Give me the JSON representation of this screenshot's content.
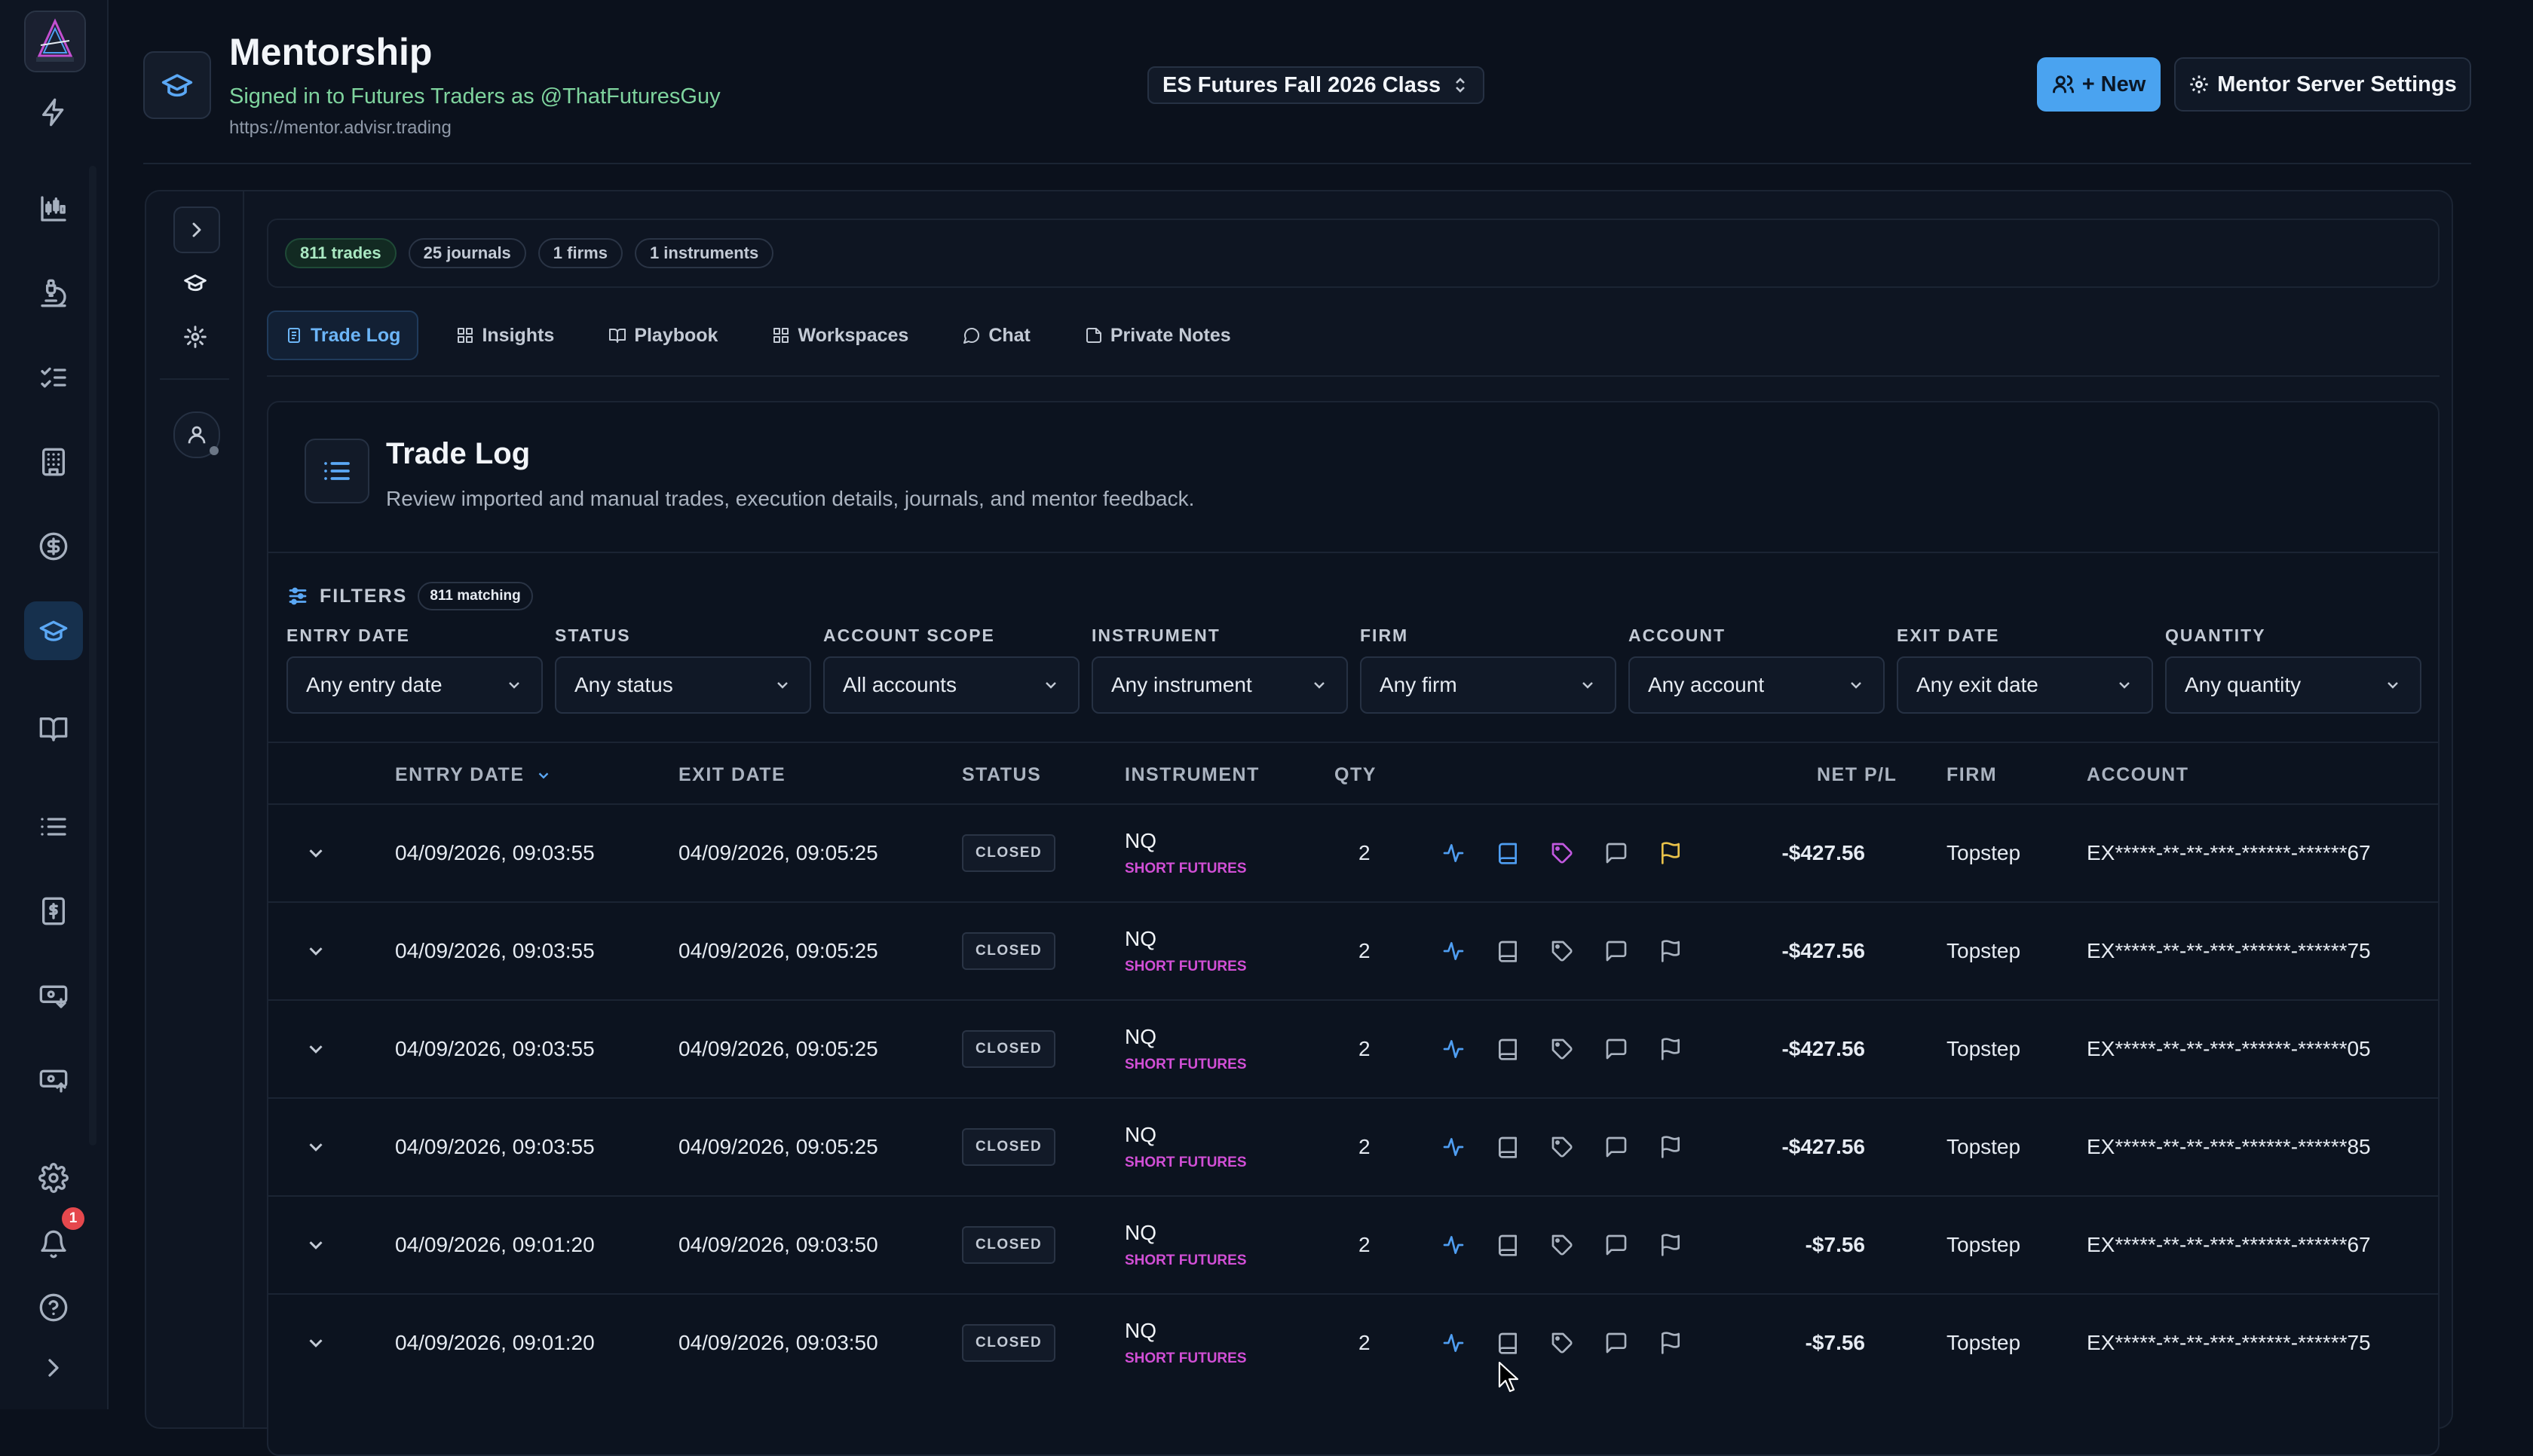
{
  "header": {
    "title": "Mentorship",
    "subtitle": "Signed in to Futures Traders as @ThatFuturesGuy",
    "url": "https://mentor.advisr.trading",
    "class_select": "ES Futures Fall 2026 Class",
    "new_button": "+ New",
    "settings_button": "Mentor Server Settings"
  },
  "rail": {
    "notification_count": "1",
    "active_item": "mentorship",
    "accent": "#5ba8f5"
  },
  "stats": [
    "811 trades",
    "25 journals",
    "1 firms",
    "1 instruments"
  ],
  "tabs": [
    "Trade Log",
    "Insights",
    "Playbook",
    "Workspaces",
    "Chat",
    "Private Notes"
  ],
  "active_tab": "Trade Log",
  "trade_log": {
    "title": "Trade Log",
    "description": "Review imported and manual trades, execution details, journals, and mentor feedback."
  },
  "filters": {
    "label": "FILTERS",
    "matching": "811 matching",
    "items": [
      {
        "label": "ENTRY DATE",
        "value": "Any entry date"
      },
      {
        "label": "STATUS",
        "value": "Any status"
      },
      {
        "label": "ACCOUNT SCOPE",
        "value": "All accounts"
      },
      {
        "label": "INSTRUMENT",
        "value": "Any instrument"
      },
      {
        "label": "FIRM",
        "value": "Any firm"
      },
      {
        "label": "ACCOUNT",
        "value": "Any account"
      },
      {
        "label": "EXIT DATE",
        "value": "Any exit date"
      },
      {
        "label": "QUANTITY",
        "value": "Any quantity"
      }
    ]
  },
  "table": {
    "columns": {
      "entry_date": "ENTRY DATE",
      "exit_date": "EXIT DATE",
      "status": "STATUS",
      "instrument": "INSTRUMENT",
      "qty": "QTY",
      "net_pl": "NET P/L",
      "firm": "FIRM",
      "account": "ACCOUNT"
    },
    "rows": [
      {
        "entry": "04/09/2026, 09:03:55",
        "exit": "04/09/2026, 09:05:25",
        "status": "CLOSED",
        "symbol": "NQ",
        "side": "SHORT FUTURES",
        "qty": "2",
        "pl": "-$427.56",
        "firm": "Topstep",
        "account": "EX*****-**-**-***-******-******67",
        "journal": true,
        "tag": true,
        "flag": true
      },
      {
        "entry": "04/09/2026, 09:03:55",
        "exit": "04/09/2026, 09:05:25",
        "status": "CLOSED",
        "symbol": "NQ",
        "side": "SHORT FUTURES",
        "qty": "2",
        "pl": "-$427.56",
        "firm": "Topstep",
        "account": "EX*****-**-**-***-******-******75",
        "journal": false,
        "tag": false,
        "flag": false
      },
      {
        "entry": "04/09/2026, 09:03:55",
        "exit": "04/09/2026, 09:05:25",
        "status": "CLOSED",
        "symbol": "NQ",
        "side": "SHORT FUTURES",
        "qty": "2",
        "pl": "-$427.56",
        "firm": "Topstep",
        "account": "EX*****-**-**-***-******-******05",
        "journal": false,
        "tag": false,
        "flag": false
      },
      {
        "entry": "04/09/2026, 09:03:55",
        "exit": "04/09/2026, 09:05:25",
        "status": "CLOSED",
        "symbol": "NQ",
        "side": "SHORT FUTURES",
        "qty": "2",
        "pl": "-$427.56",
        "firm": "Topstep",
        "account": "EX*****-**-**-***-******-******85",
        "journal": false,
        "tag": false,
        "flag": false
      },
      {
        "entry": "04/09/2026, 09:01:20",
        "exit": "04/09/2026, 09:03:50",
        "status": "CLOSED",
        "symbol": "NQ",
        "side": "SHORT FUTURES",
        "qty": "2",
        "pl": "-$7.56",
        "firm": "Topstep",
        "account": "EX*****-**-**-***-******-******67",
        "journal": false,
        "tag": false,
        "flag": false
      },
      {
        "entry": "04/09/2026, 09:01:20",
        "exit": "04/09/2026, 09:03:50",
        "status": "CLOSED",
        "symbol": "NQ",
        "side": "SHORT FUTURES",
        "qty": "2",
        "pl": "-$7.56",
        "firm": "Topstep",
        "account": "EX*****-**-**-***-******-******75",
        "journal": false,
        "tag": false,
        "flag": false
      }
    ]
  }
}
